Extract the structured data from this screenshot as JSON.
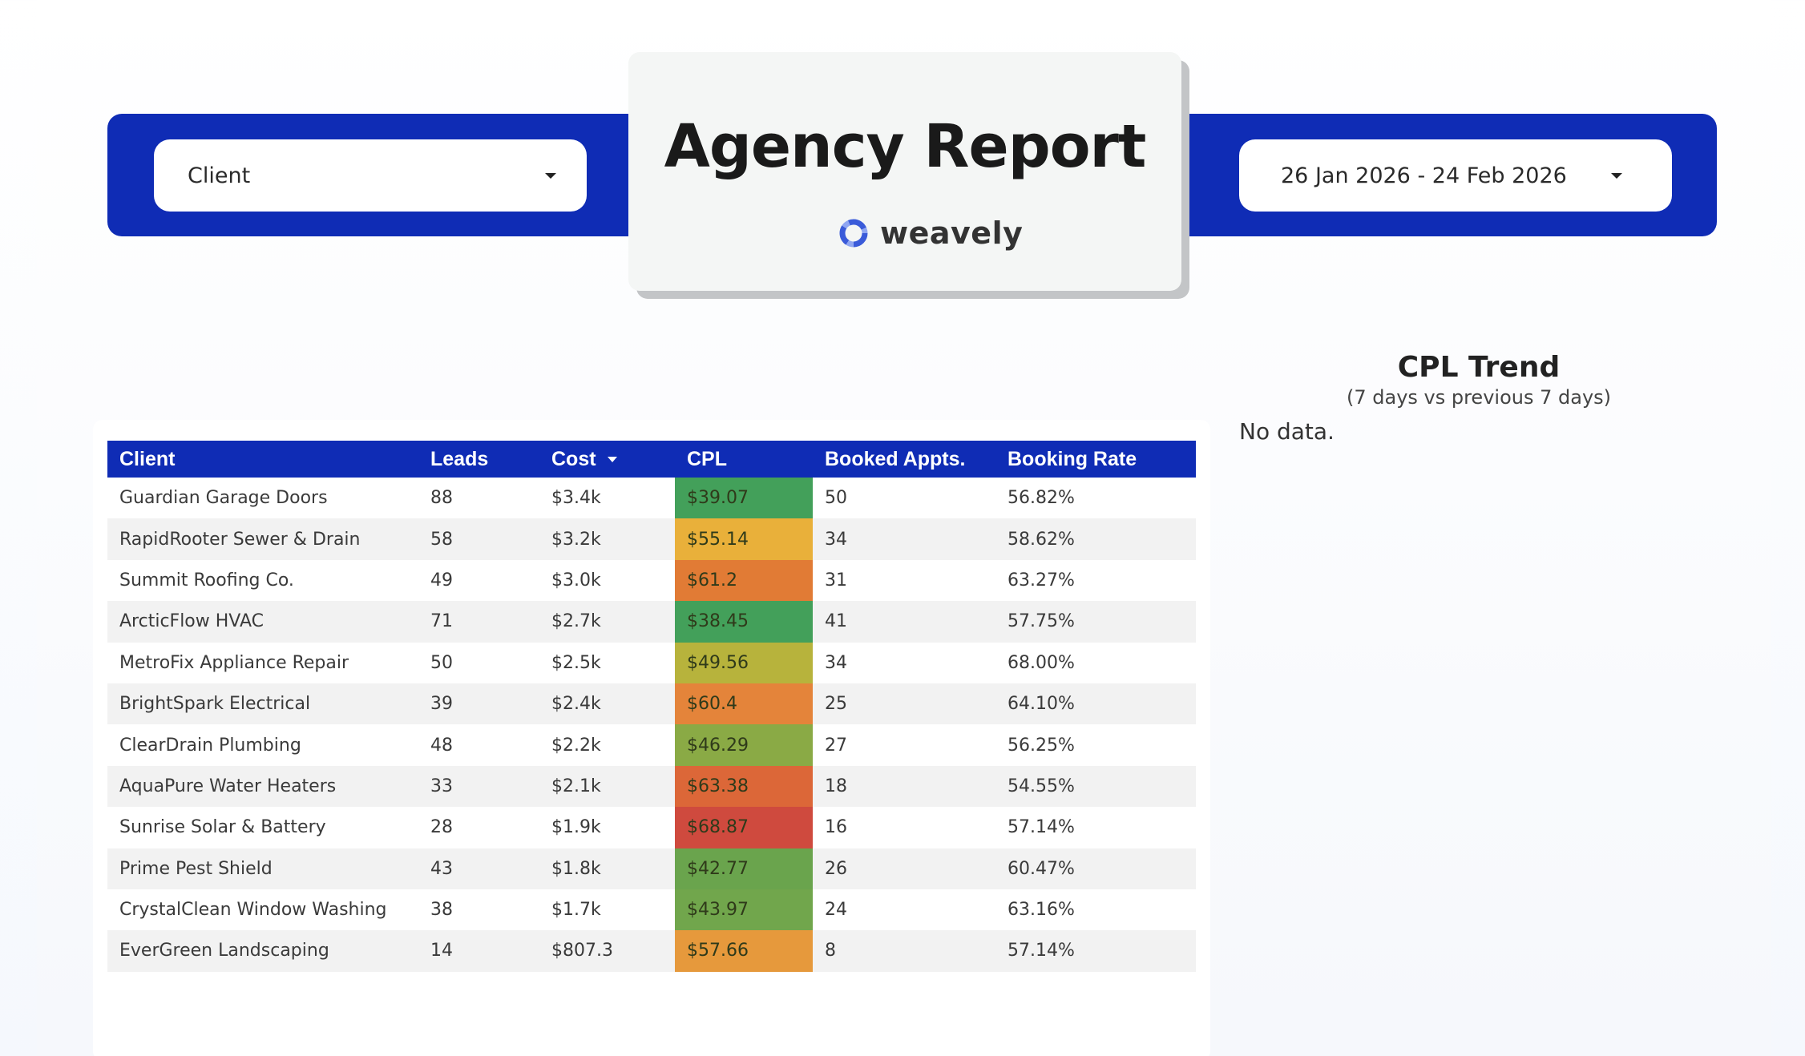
{
  "header": {
    "client_filter": "Client",
    "date_range": "26 Jan 2026 - 24 Feb 2026",
    "title": "Agency Report",
    "brand": "weavely"
  },
  "table": {
    "columns": [
      "Client",
      "Leads",
      "Cost",
      "CPL",
      "Booked Appts.",
      "Booking Rate"
    ],
    "sort_column": "Cost",
    "rows": [
      {
        "client": "Guardian Garage Doors",
        "leads": "88",
        "cost": "$3.4k",
        "cpl": "$39.07",
        "cpl_color": "#43a05a",
        "booked": "50",
        "rate": "56.82%"
      },
      {
        "client": "RapidRooter Sewer & Drain",
        "leads": "58",
        "cost": "$3.2k",
        "cpl": "$55.14",
        "cpl_color": "#e9b03a",
        "booked": "34",
        "rate": "58.62%"
      },
      {
        "client": "Summit Roofing Co.",
        "leads": "49",
        "cost": "$3.0k",
        "cpl": "$61.2",
        "cpl_color": "#e17b35",
        "booked": "31",
        "rate": "63.27%"
      },
      {
        "client": "ArcticFlow HVAC",
        "leads": "71",
        "cost": "$2.7k",
        "cpl": "$38.45",
        "cpl_color": "#43a05a",
        "booked": "41",
        "rate": "57.75%"
      },
      {
        "client": "MetroFix Appliance Repair",
        "leads": "50",
        "cost": "$2.5k",
        "cpl": "$49.56",
        "cpl_color": "#b7b33c",
        "booked": "34",
        "rate": "68.00%"
      },
      {
        "client": "BrightSpark Electrical",
        "leads": "39",
        "cost": "$2.4k",
        "cpl": "$60.4",
        "cpl_color": "#e4843a",
        "booked": "25",
        "rate": "64.10%"
      },
      {
        "client": "ClearDrain Plumbing",
        "leads": "48",
        "cost": "$2.2k",
        "cpl": "$46.29",
        "cpl_color": "#8aaa45",
        "booked": "27",
        "rate": "56.25%"
      },
      {
        "client": "AquaPure Water Heaters",
        "leads": "33",
        "cost": "$2.1k",
        "cpl": "$63.38",
        "cpl_color": "#dc6738",
        "booked": "18",
        "rate": "54.55%"
      },
      {
        "client": "Sunrise Solar & Battery",
        "leads": "28",
        "cost": "$1.9k",
        "cpl": "$68.87",
        "cpl_color": "#cf4a3e",
        "booked": "16",
        "rate": "57.14%"
      },
      {
        "client": "Prime Pest Shield",
        "leads": "43",
        "cost": "$1.8k",
        "cpl": "$42.77",
        "cpl_color": "#6aa44d",
        "booked": "26",
        "rate": "60.47%"
      },
      {
        "client": "CrystalClean Window Washing",
        "leads": "38",
        "cost": "$1.7k",
        "cpl": "$43.97",
        "cpl_color": "#71a64c",
        "booked": "24",
        "rate": "63.16%"
      },
      {
        "client": "EverGreen Landscaping",
        "leads": "14",
        "cost": "$807.3",
        "cpl": "$57.66",
        "cpl_color": "#e6993c",
        "booked": "8",
        "rate": "57.14%"
      }
    ]
  },
  "trend": {
    "title": "CPL Trend",
    "subtitle": "(7 days vs previous 7 days)",
    "empty_message": "No data."
  },
  "colors": {
    "brand_blue": "#0f2cb5",
    "card_bg": "#f4f6f5"
  },
  "icons": {
    "dropdown": "chevron-down-icon",
    "sort": "sort-desc-icon",
    "logo": "weavely-logo-icon"
  }
}
